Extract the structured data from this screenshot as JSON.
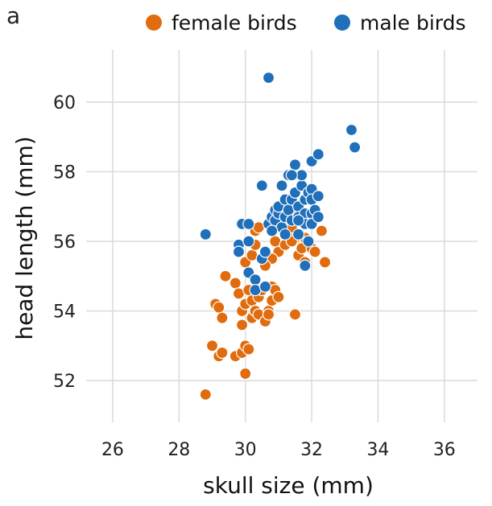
{
  "panel_label": "a",
  "colors": {
    "female": "#e06c0e",
    "male": "#1f6fba",
    "grid": "#dcdcdc"
  },
  "chart_data": {
    "type": "scatter",
    "xlabel": "skull size (mm)",
    "ylabel": "head length (mm)",
    "xlim": [
      25.2,
      37
    ],
    "ylim": [
      50.8,
      61.5
    ],
    "xticks": [
      26,
      28,
      30,
      32,
      34,
      36
    ],
    "yticks": [
      52,
      54,
      56,
      58,
      60
    ],
    "grid": true,
    "legend_position": "top",
    "series": [
      {
        "name": "female birds",
        "color": "#e06c0e",
        "points": [
          [
            28.8,
            51.6
          ],
          [
            29.0,
            53.0
          ],
          [
            29.2,
            52.7
          ],
          [
            29.3,
            52.8
          ],
          [
            29.1,
            54.2
          ],
          [
            29.2,
            54.1
          ],
          [
            29.3,
            53.8
          ],
          [
            29.4,
            55.0
          ],
          [
            29.7,
            54.8
          ],
          [
            29.8,
            54.5
          ],
          [
            29.7,
            52.7
          ],
          [
            29.9,
            52.8
          ],
          [
            30.0,
            53.0
          ],
          [
            30.1,
            52.9
          ],
          [
            30.0,
            52.2
          ],
          [
            29.9,
            53.6
          ],
          [
            29.9,
            54.0
          ],
          [
            30.0,
            54.2
          ],
          [
            30.1,
            54.6
          ],
          [
            30.2,
            54.3
          ],
          [
            30.0,
            55.4
          ],
          [
            30.2,
            55.6
          ],
          [
            30.3,
            55.9
          ],
          [
            30.3,
            56.3
          ],
          [
            30.4,
            56.4
          ],
          [
            30.2,
            53.8
          ],
          [
            30.3,
            54.0
          ],
          [
            30.4,
            53.9
          ],
          [
            30.4,
            54.4
          ],
          [
            30.5,
            54.6
          ],
          [
            30.6,
            53.7
          ],
          [
            30.7,
            54.0
          ],
          [
            30.8,
            54.3
          ],
          [
            30.8,
            54.7
          ],
          [
            30.7,
            53.9
          ],
          [
            30.9,
            54.6
          ],
          [
            31.0,
            54.4
          ],
          [
            31.0,
            55.7
          ],
          [
            30.9,
            56.0
          ],
          [
            31.2,
            55.9
          ],
          [
            31.2,
            56.2
          ],
          [
            31.3,
            56.5
          ],
          [
            31.4,
            56.4
          ],
          [
            31.5,
            56.8
          ],
          [
            31.5,
            56.1
          ],
          [
            31.6,
            55.6
          ],
          [
            31.7,
            55.8
          ],
          [
            31.5,
            53.9
          ],
          [
            31.8,
            56.1
          ],
          [
            32.0,
            55.8
          ],
          [
            32.1,
            55.7
          ],
          [
            32.3,
            56.3
          ],
          [
            32.4,
            55.4
          ],
          [
            31.8,
            55.4
          ],
          [
            31.4,
            56.0
          ],
          [
            30.8,
            55.5
          ],
          [
            30.6,
            55.3
          ]
        ]
      },
      {
        "name": "male birds",
        "color": "#1f6fba",
        "points": [
          [
            28.8,
            56.2
          ],
          [
            29.8,
            55.9
          ],
          [
            29.9,
            56.5
          ],
          [
            30.1,
            56.5
          ],
          [
            30.1,
            56.0
          ],
          [
            29.8,
            55.7
          ],
          [
            30.1,
            55.1
          ],
          [
            30.3,
            54.9
          ],
          [
            30.3,
            54.6
          ],
          [
            30.5,
            55.5
          ],
          [
            30.6,
            55.7
          ],
          [
            30.6,
            54.7
          ],
          [
            30.7,
            60.7
          ],
          [
            30.5,
            57.6
          ],
          [
            30.7,
            56.5
          ],
          [
            30.8,
            56.7
          ],
          [
            30.9,
            56.9
          ],
          [
            30.9,
            56.6
          ],
          [
            31.0,
            56.8
          ],
          [
            31.0,
            57.0
          ],
          [
            31.1,
            56.4
          ],
          [
            31.1,
            57.6
          ],
          [
            31.2,
            57.2
          ],
          [
            31.2,
            56.7
          ],
          [
            31.3,
            56.9
          ],
          [
            31.3,
            57.9
          ],
          [
            31.4,
            57.2
          ],
          [
            31.4,
            56.6
          ],
          [
            31.5,
            58.2
          ],
          [
            31.5,
            57.4
          ],
          [
            31.6,
            57.0
          ],
          [
            31.6,
            56.7
          ],
          [
            31.6,
            56.2
          ],
          [
            31.7,
            57.6
          ],
          [
            31.7,
            57.9
          ],
          [
            31.8,
            57.2
          ],
          [
            31.8,
            56.8
          ],
          [
            31.8,
            56.5
          ],
          [
            31.9,
            57.4
          ],
          [
            31.9,
            56.0
          ],
          [
            32.0,
            58.3
          ],
          [
            32.0,
            57.5
          ],
          [
            32.0,
            57.2
          ],
          [
            32.0,
            56.8
          ],
          [
            32.0,
            56.5
          ],
          [
            32.1,
            56.9
          ],
          [
            32.2,
            58.5
          ],
          [
            32.2,
            57.3
          ],
          [
            32.2,
            56.7
          ],
          [
            31.8,
            55.3
          ],
          [
            31.6,
            56.6
          ],
          [
            31.2,
            56.2
          ],
          [
            31.4,
            57.9
          ],
          [
            33.2,
            59.2
          ],
          [
            33.3,
            58.7
          ],
          [
            30.8,
            56.3
          ]
        ]
      }
    ]
  }
}
